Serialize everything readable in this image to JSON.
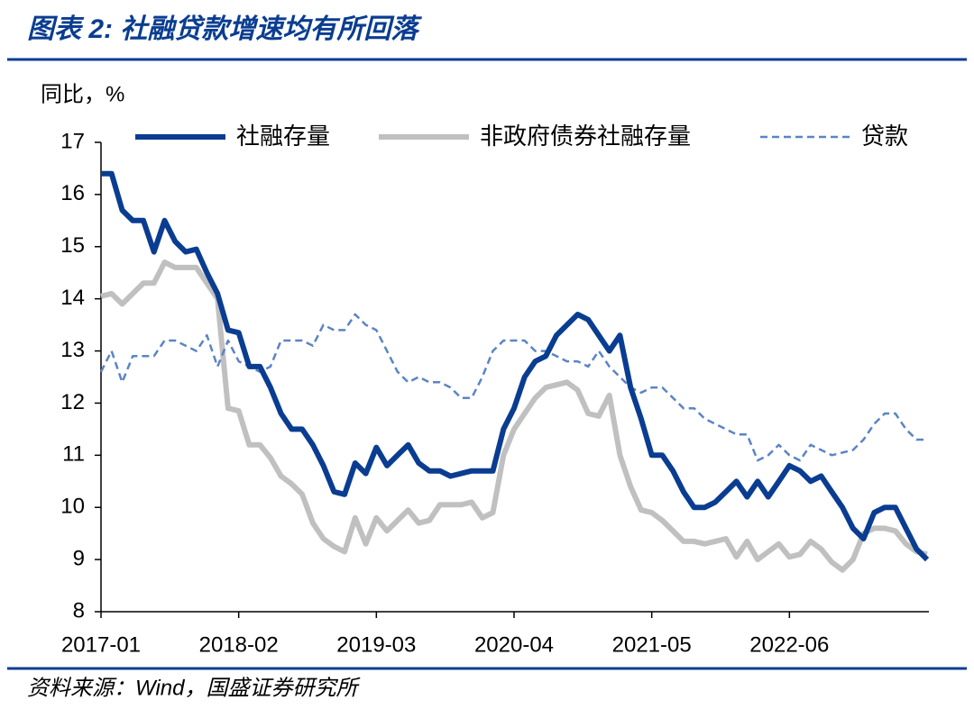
{
  "chart_data": {
    "type": "line",
    "title": "图表 2:  社融贷款增速均有所回落",
    "y_label": "同比，%",
    "source": "资料来源：Wind，国盛证券研究所",
    "categories": [
      "2017-01",
      null,
      null,
      null,
      null,
      null,
      null,
      null,
      null,
      null,
      null,
      null,
      null,
      "2018-02",
      null,
      null,
      null,
      null,
      null,
      null,
      null,
      null,
      null,
      null,
      null,
      null,
      "2019-03",
      null,
      null,
      null,
      null,
      null,
      null,
      null,
      null,
      null,
      null,
      null,
      null,
      "2020-04",
      null,
      null,
      null,
      null,
      null,
      null,
      null,
      null,
      null,
      null,
      null,
      null,
      "2021-05",
      null,
      null,
      null,
      null,
      null,
      null,
      null,
      null,
      null,
      null,
      null,
      null,
      "2022-06",
      null,
      null,
      null,
      null,
      null,
      null,
      null,
      null,
      null,
      null,
      null,
      null,
      null
    ],
    "ylim": [
      8,
      17
    ],
    "yticks": [
      8,
      9,
      10,
      11,
      12,
      13,
      14,
      15,
      16,
      17
    ],
    "series": [
      {
        "name": "社融存量",
        "color": "#0a3d91",
        "style": "solid",
        "values": [
          16.4,
          16.4,
          15.7,
          15.5,
          15.5,
          14.9,
          15.5,
          15.1,
          14.9,
          14.95,
          14.5,
          14.1,
          13.4,
          13.35,
          12.7,
          12.7,
          12.3,
          11.8,
          11.5,
          11.5,
          11.2,
          10.8,
          10.3,
          10.25,
          10.85,
          10.65,
          11.15,
          10.8,
          11.0,
          11.2,
          10.85,
          10.7,
          10.7,
          10.6,
          10.65,
          10.7,
          10.7,
          10.7,
          11.5,
          11.9,
          12.5,
          12.8,
          12.9,
          13.3,
          13.5,
          13.7,
          13.6,
          13.3,
          13.0,
          13.3,
          12.3,
          11.7,
          11.0,
          11.0,
          10.7,
          10.3,
          10.0,
          10.0,
          10.1,
          10.3,
          10.5,
          10.2,
          10.5,
          10.2,
          10.5,
          10.8,
          10.7,
          10.5,
          10.6,
          10.3,
          10.0,
          9.6,
          9.4,
          9.9,
          10.0,
          10.0,
          9.6,
          9.2,
          9.0
        ]
      },
      {
        "name": "非政府债券社融存量",
        "color": "#c0c0c0",
        "style": "solid",
        "values": [
          14.05,
          14.1,
          13.9,
          14.1,
          14.3,
          14.3,
          14.7,
          14.6,
          14.6,
          14.6,
          14.3,
          14.0,
          11.9,
          11.85,
          11.2,
          11.2,
          10.95,
          10.6,
          10.45,
          10.25,
          9.7,
          9.4,
          9.25,
          9.15,
          9.8,
          9.3,
          9.8,
          9.55,
          9.75,
          9.95,
          9.7,
          9.75,
          10.05,
          10.05,
          10.05,
          10.1,
          9.8,
          9.9,
          11.0,
          11.5,
          11.8,
          12.1,
          12.3,
          12.35,
          12.4,
          12.25,
          11.8,
          11.75,
          12.15,
          11.0,
          10.4,
          9.95,
          9.9,
          9.75,
          9.55,
          9.35,
          9.35,
          9.3,
          9.35,
          9.4,
          9.05,
          9.35,
          9.0,
          9.15,
          9.3,
          9.05,
          9.1,
          9.35,
          9.2,
          8.95,
          8.8,
          9.0,
          9.5,
          9.6,
          9.6,
          9.55,
          9.3,
          9.15,
          9.1
        ]
      },
      {
        "name": "贷款",
        "color": "#5b84c4",
        "style": "dashed",
        "values": [
          12.6,
          13.0,
          12.4,
          12.9,
          12.9,
          12.9,
          13.2,
          13.2,
          13.1,
          13.0,
          13.3,
          12.7,
          13.2,
          12.8,
          12.7,
          12.6,
          12.7,
          13.2,
          13.2,
          13.2,
          13.1,
          13.5,
          13.4,
          13.4,
          13.7,
          13.5,
          13.4,
          13.0,
          12.6,
          12.4,
          12.5,
          12.4,
          12.4,
          12.3,
          12.1,
          12.1,
          12.5,
          13.0,
          13.2,
          13.2,
          13.2,
          13.0,
          13.0,
          12.9,
          12.8,
          12.8,
          12.7,
          13.0,
          12.7,
          12.5,
          12.3,
          12.2,
          12.3,
          12.3,
          12.1,
          11.9,
          11.9,
          11.7,
          11.6,
          11.5,
          11.4,
          11.4,
          10.9,
          11.0,
          11.2,
          11.0,
          10.9,
          11.2,
          11.1,
          11.0,
          11.05,
          11.1,
          11.3,
          11.6,
          11.8,
          11.8,
          11.5,
          11.3,
          11.3
        ]
      }
    ]
  }
}
